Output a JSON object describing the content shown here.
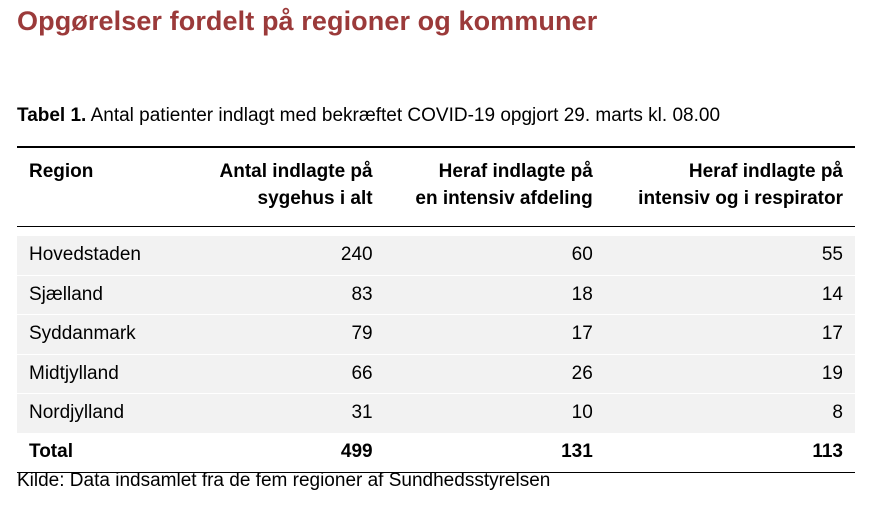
{
  "heading": "Opgørelser fordelt på regioner og kommuner",
  "caption": {
    "label": "Tabel 1.",
    "text": " Antal patienter indlagt med bekræftet COVID-19 opgjort 29. marts kl. 08.00"
  },
  "table": {
    "headers": [
      [
        "Region"
      ],
      [
        "Antal indlagte på",
        "sygehus i alt"
      ],
      [
        "Heraf indlagte på",
        "en intensiv afdeling"
      ],
      [
        "Heraf indlagte på",
        "intensiv og i respirator"
      ]
    ],
    "rows": [
      [
        "Hovedstaden",
        "240",
        "60",
        "55"
      ],
      [
        "Sjælland",
        "83",
        "18",
        "14"
      ],
      [
        "Syddanmark",
        "79",
        "17",
        "17"
      ],
      [
        "Midtjylland",
        "66",
        "26",
        "19"
      ],
      [
        "Nordjylland",
        "31",
        "10",
        "8"
      ]
    ],
    "total": [
      "Total",
      "499",
      "131",
      "113"
    ]
  },
  "source": "Kilde: Data indsamlet fra de fem regioner af Sundhedsstyrelsen"
}
